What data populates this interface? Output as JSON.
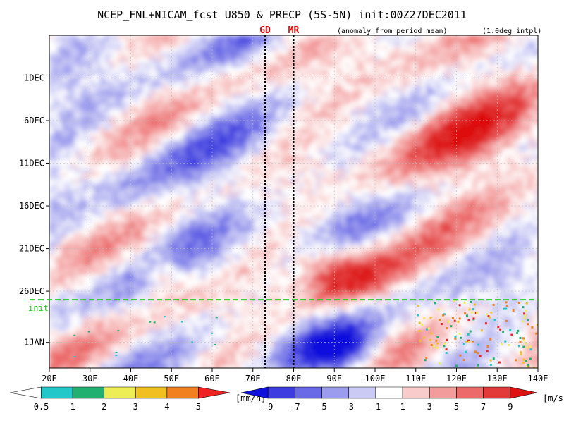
{
  "title": "NCEP_FNL+NICAM_fcst U850 & PRECP (5S-5N) init:00Z27DEC2011",
  "subtitle_left": "(anomaly from period mean)",
  "subtitle_right": "(1.0deg intpl)",
  "markers": [
    {
      "label": "GD",
      "lon": 73
    },
    {
      "label": "MR",
      "lon": 80
    }
  ],
  "init_label": "init",
  "colors": {
    "init_line": "#22cc22",
    "marker_text": "#e00000",
    "u_neg_strong": "#2222cc",
    "u_neg_mid": "#7777dd",
    "u_neg_weak": "#c8c8f0",
    "u_pos_weak": "#f7c8c8",
    "u_pos_mid": "#ee7777",
    "u_pos_strong": "#dd1111"
  },
  "chart_data": {
    "type": "heatmap",
    "x_axis": {
      "range": [
        "20E",
        "140E"
      ],
      "ticks": [
        "20E",
        "30E",
        "40E",
        "50E",
        "60E",
        "70E",
        "80E",
        "90E",
        "100E",
        "110E",
        "120E",
        "130E",
        "140E"
      ]
    },
    "y_axis": {
      "range": [
        "26NOV2011",
        "04JAN2012"
      ],
      "ticks": [
        "1DEC",
        "6DEC",
        "11DEC",
        "16DEC",
        "21DEC",
        "26DEC",
        "1JAN"
      ],
      "init_date": "27DEC2011"
    },
    "variables": [
      "U850 anomaly (shaded, m/s)",
      "PRECP (colored, mm/h)"
    ],
    "features": [
      {
        "note": "westerly anomaly",
        "lon": [
          82,
          100
        ],
        "date": "24DEC",
        "sign": "+"
      },
      {
        "note": "westerly anomaly",
        "lon": [
          45,
          52
        ],
        "date": "24DEC",
        "sign": "+"
      },
      {
        "note": "easterly anomaly",
        "lon": [
          85,
          100
        ],
        "date": "2JAN",
        "sign": "-"
      },
      {
        "note": "westerly band",
        "lon": [
          110,
          140
        ],
        "date": "1-10DEC",
        "sign": "+"
      }
    ],
    "legends": [
      {
        "name": "precip",
        "unit": "[mm/h]",
        "labels": [
          "0.5",
          "1",
          "2",
          "3",
          "4",
          "5"
        ],
        "colors": [
          "#ffffff",
          "#22c7c7",
          "#22b070",
          "#eded55",
          "#f0c020",
          "#f08020",
          "#ee2222"
        ]
      },
      {
        "name": "wind",
        "unit": "[m/s]",
        "labels": [
          "-9",
          "-7",
          "-5",
          "-3",
          "-1",
          "1",
          "3",
          "5",
          "7",
          "9"
        ],
        "colors": [
          "#1010dd",
          "#3c3ce0",
          "#6a6ae6",
          "#9c9cee",
          "#cacaf5",
          "#ffffff",
          "#f9cccc",
          "#f39c9c",
          "#ec6a6a",
          "#e23a3a",
          "#dd1111"
        ]
      }
    ]
  }
}
